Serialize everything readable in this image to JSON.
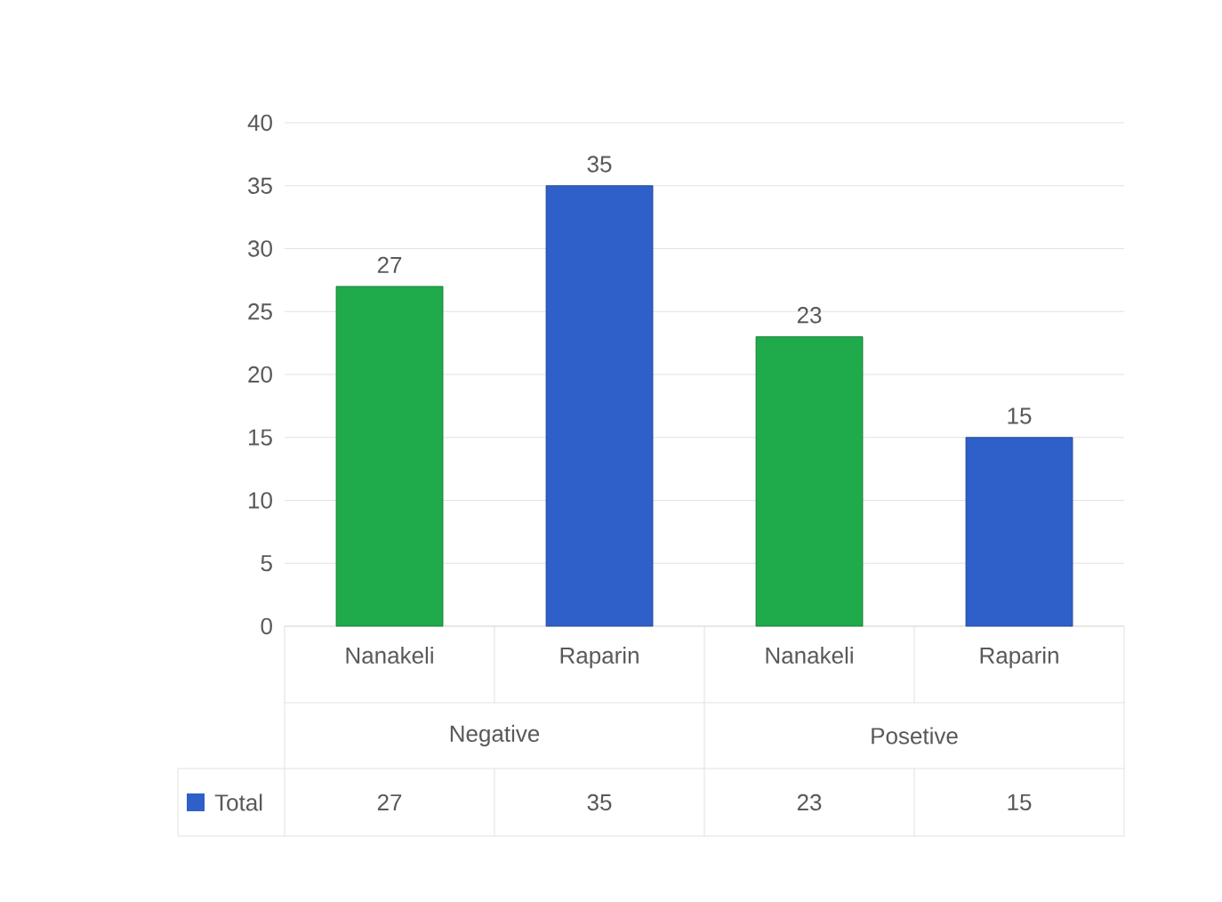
{
  "chart_data": {
    "type": "bar",
    "categories": [
      "Nanakeli",
      "Raparin",
      "Nanakeli",
      "Raparin"
    ],
    "series": [
      {
        "name": "Total",
        "values": [
          27,
          35,
          23,
          15
        ]
      }
    ],
    "colors": [
      "#1faa4b",
      "#2f5fc8",
      "#1faa4b",
      "#2f5fc8"
    ],
    "ylim": [
      0,
      40
    ],
    "yticks": [
      0,
      5,
      10,
      15,
      20,
      25,
      30,
      35,
      40
    ],
    "grid": "y",
    "data_labels": true,
    "value_labels": [
      "27",
      "35",
      "23",
      "15"
    ],
    "legend": "bottom",
    "annotations": [
      "Negative",
      "Posetive"
    ]
  }
}
